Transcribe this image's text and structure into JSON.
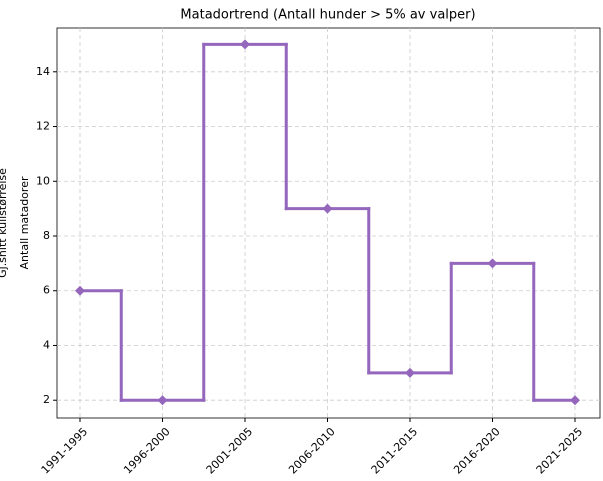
{
  "chart_data": {
    "type": "step",
    "title": "Matadortrend (Antall hunder > 5% av valper)",
    "y_label": "Antall matadorer",
    "y_label_secondary": "Gj.snitt kullstørrelse",
    "categories": [
      "1991-1995",
      "1996-2000",
      "2001-2005",
      "2006-2010",
      "2011-2015",
      "2016-2020",
      "2021-2025"
    ],
    "values": [
      6,
      2,
      15,
      9,
      3,
      7,
      2
    ],
    "color": "#9467bd",
    "ylim": [
      1.35,
      15.6
    ],
    "yticks": [
      2,
      4,
      6,
      8,
      10,
      12,
      14
    ],
    "grid": true
  }
}
